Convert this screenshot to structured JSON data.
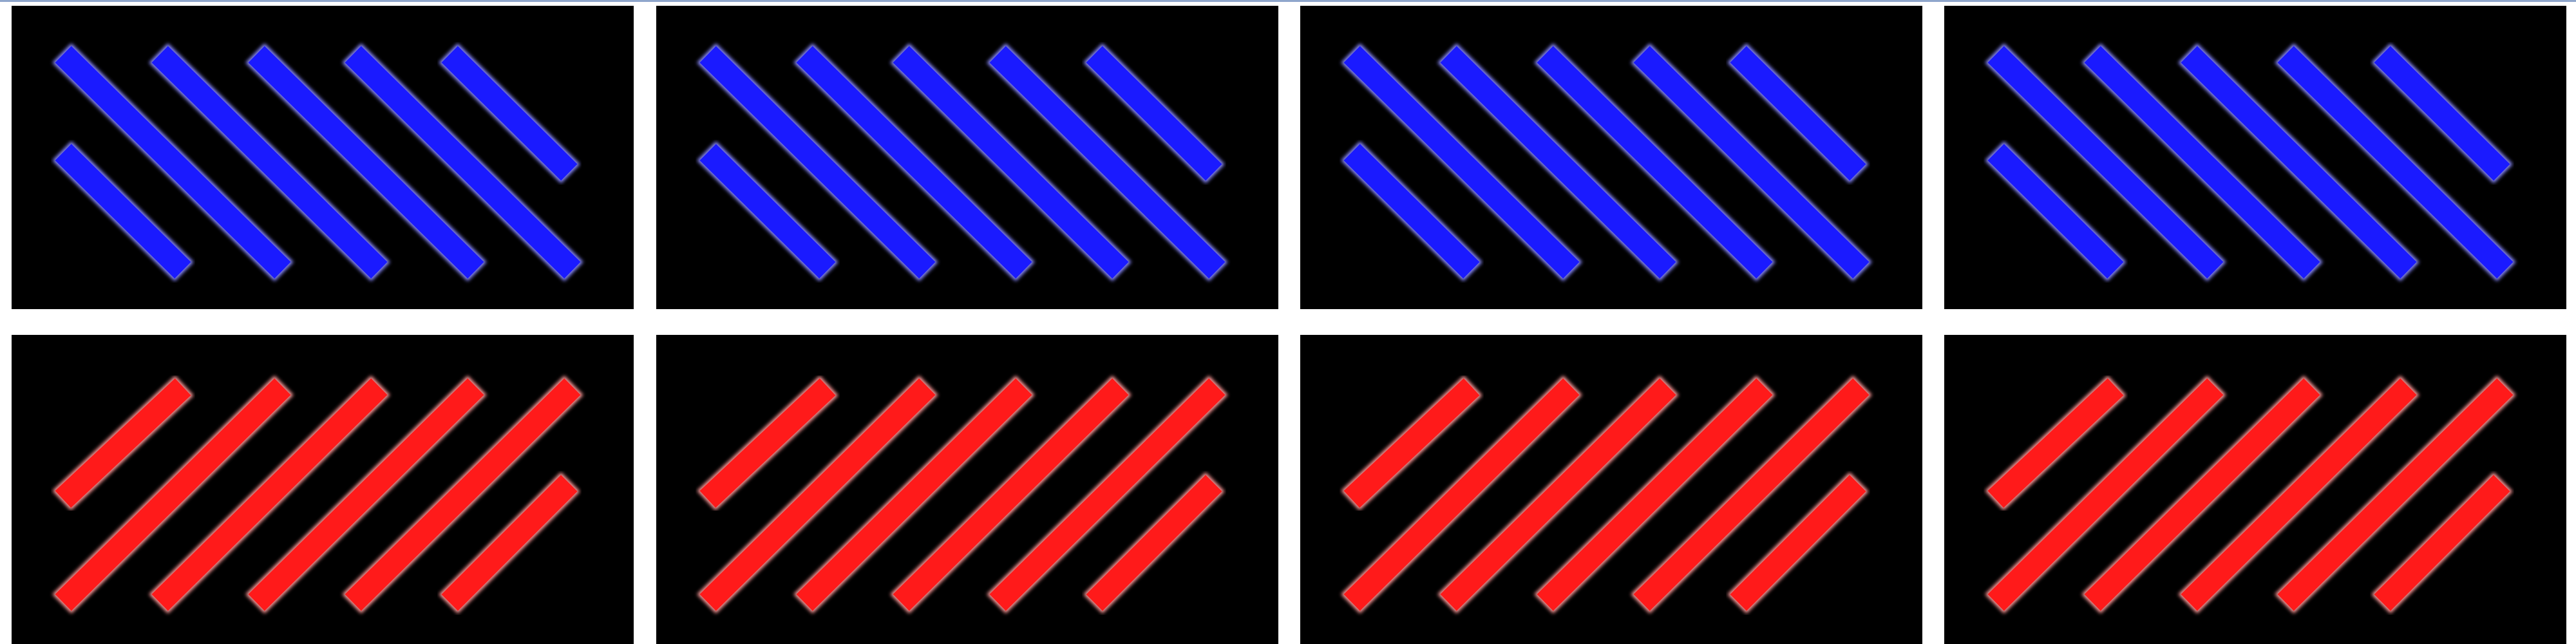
{
  "palette": {
    "background": "#ffffff",
    "top_strip": "#8fa6cc",
    "panel_fill": "#000000",
    "panel_border": "#ffffff",
    "blue_stripe": "#1a1aff",
    "blue_stripe_glow": "#8a8aff",
    "red_stripe": "#ff1a1a",
    "red_stripe_glow": "#ff9a9a"
  },
  "panels": [
    {
      "row": "top",
      "column": 1,
      "stripe_color": "blue",
      "direction": "descending"
    },
    {
      "row": "top",
      "column": 2,
      "stripe_color": "blue",
      "direction": "descending"
    },
    {
      "row": "top",
      "column": 3,
      "stripe_color": "blue",
      "direction": "descending"
    },
    {
      "row": "top",
      "column": 4,
      "stripe_color": "blue",
      "direction": "descending"
    },
    {
      "row": "bottom",
      "column": 1,
      "stripe_color": "red",
      "direction": "ascending"
    },
    {
      "row": "bottom",
      "column": 2,
      "stripe_color": "red",
      "direction": "ascending"
    },
    {
      "row": "bottom",
      "column": 3,
      "stripe_color": "red",
      "direction": "ascending"
    },
    {
      "row": "bottom",
      "column": 4,
      "stripe_color": "red",
      "direction": "ascending"
    }
  ]
}
